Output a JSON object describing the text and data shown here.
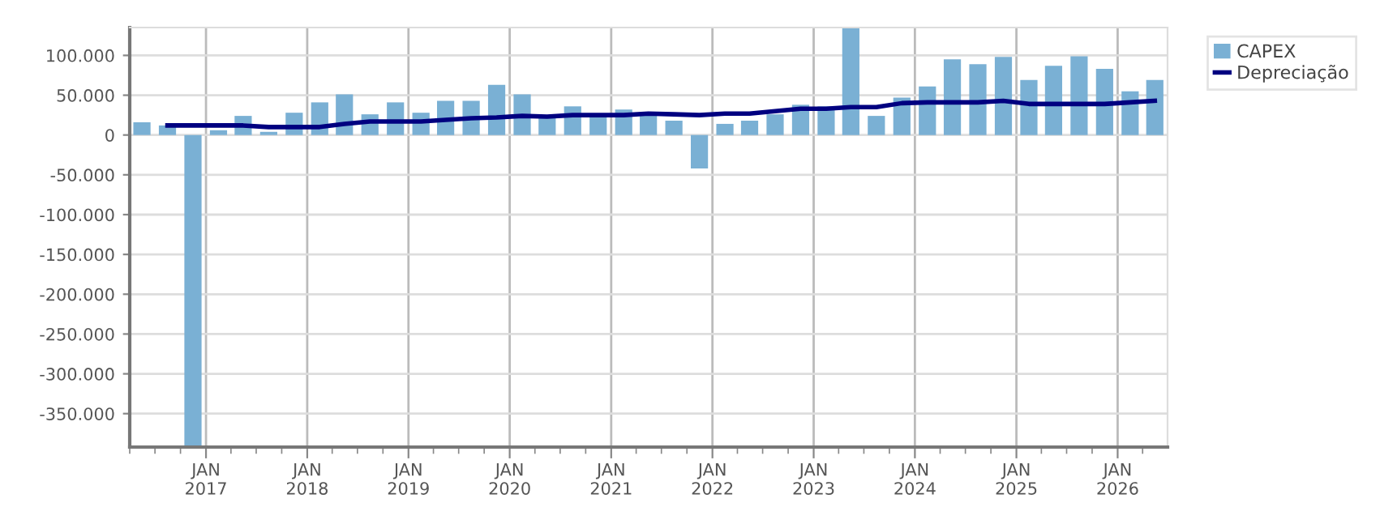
{
  "chart_data": {
    "type": "bar",
    "x": [
      "2016-05-15",
      "2016-08-15",
      "2016-11-15",
      "2017-02-15",
      "2017-05-15",
      "2017-08-15",
      "2017-11-15",
      "2018-02-15",
      "2018-05-15",
      "2018-08-15",
      "2018-11-15",
      "2019-02-15",
      "2019-05-15",
      "2019-08-15",
      "2019-11-15",
      "2020-02-15",
      "2020-05-15",
      "2020-08-15",
      "2020-11-15",
      "2021-02-15",
      "2021-05-15",
      "2021-08-15",
      "2021-11-15",
      "2022-02-15",
      "2022-05-15",
      "2022-08-15",
      "2022-11-15",
      "2023-02-15",
      "2023-05-15",
      "2023-08-15",
      "2023-11-15",
      "2024-02-15",
      "2024-05-15",
      "2024-08-15",
      "2024-11-15",
      "2025-02-15",
      "2025-05-15",
      "2025-08-15",
      "2025-11-15",
      "2026-02-15",
      "2026-05-15"
    ],
    "series": [
      {
        "name": "CAPEX",
        "color": "#7ab0d4",
        "values": [
          16000,
          12000,
          -392000,
          6000,
          24000,
          4000,
          28000,
          41000,
          51000,
          26000,
          41000,
          28000,
          43000,
          43000,
          63000,
          51000,
          22000,
          36000,
          23000,
          32000,
          25000,
          18000,
          -42000,
          14000,
          18000,
          26000,
          38000,
          36000,
          134000,
          24000,
          47000,
          61000,
          95000,
          89000,
          98000,
          69000,
          87000,
          99000,
          83000,
          55000,
          69000
        ]
      },
      {
        "name": "Depreciação",
        "type": "line",
        "color": "#000080",
        "values": [
          null,
          12000,
          12000,
          12000,
          12000,
          10000,
          10000,
          10000,
          14000,
          17000,
          17000,
          17000,
          19000,
          21000,
          22000,
          24000,
          23000,
          25000,
          25000,
          25000,
          27000,
          26000,
          25000,
          27000,
          27000,
          30000,
          33000,
          33000,
          35000,
          35000,
          40000,
          41000,
          41000,
          41000,
          43000,
          39000,
          39000,
          39000,
          39000,
          41000,
          43000
        ]
      }
    ],
    "xlim": [
      "2016-04-01",
      "2026-06-30"
    ],
    "xticks": [
      {
        "value": "2016-04-01",
        "label": null
      },
      {
        "value": "2016-07-01",
        "label": null
      },
      {
        "value": "2016-10-01",
        "label": null
      },
      {
        "value": "2017-01-01",
        "label": "JAN\n2017"
      },
      {
        "value": "2017-04-01",
        "label": null
      },
      {
        "value": "2017-07-01",
        "label": null
      },
      {
        "value": "2017-10-01",
        "label": null
      },
      {
        "value": "2018-01-01",
        "label": "JAN\n2018"
      },
      {
        "value": "2018-04-01",
        "label": null
      },
      {
        "value": "2018-07-01",
        "label": null
      },
      {
        "value": "2018-10-01",
        "label": null
      },
      {
        "value": "2019-01-01",
        "label": "JAN\n2019"
      },
      {
        "value": "2019-04-01",
        "label": null
      },
      {
        "value": "2019-07-01",
        "label": null
      },
      {
        "value": "2019-10-01",
        "label": null
      },
      {
        "value": "2020-01-01",
        "label": "JAN\n2020"
      },
      {
        "value": "2020-04-01",
        "label": null
      },
      {
        "value": "2020-07-01",
        "label": null
      },
      {
        "value": "2020-10-01",
        "label": null
      },
      {
        "value": "2021-01-01",
        "label": "JAN\n2021"
      },
      {
        "value": "2021-04-01",
        "label": null
      },
      {
        "value": "2021-07-01",
        "label": null
      },
      {
        "value": "2021-10-01",
        "label": null
      },
      {
        "value": "2022-01-01",
        "label": "JAN\n2022"
      },
      {
        "value": "2022-04-01",
        "label": null
      },
      {
        "value": "2022-07-01",
        "label": null
      },
      {
        "value": "2022-10-01",
        "label": null
      },
      {
        "value": "2023-01-01",
        "label": "JAN\n2023"
      },
      {
        "value": "2023-04-01",
        "label": null
      },
      {
        "value": "2023-07-01",
        "label": null
      },
      {
        "value": "2023-10-01",
        "label": null
      },
      {
        "value": "2024-01-01",
        "label": "JAN\n2024"
      },
      {
        "value": "2024-04-01",
        "label": null
      },
      {
        "value": "2024-07-01",
        "label": null
      },
      {
        "value": "2024-10-01",
        "label": null
      },
      {
        "value": "2025-01-01",
        "label": "JAN\n2025"
      },
      {
        "value": "2025-04-01",
        "label": null
      },
      {
        "value": "2025-07-01",
        "label": null
      },
      {
        "value": "2025-10-01",
        "label": null
      },
      {
        "value": "2026-01-01",
        "label": "JAN\n2026"
      },
      {
        "value": "2026-04-01",
        "label": null
      }
    ],
    "ylim": [
      -392000,
      135000
    ],
    "yticks": [
      {
        "value": -350000,
        "label": "-350.000"
      },
      {
        "value": -300000,
        "label": "-300.000"
      },
      {
        "value": -250000,
        "label": "-250.000"
      },
      {
        "value": -200000,
        "label": "-200.000"
      },
      {
        "value": -150000,
        "label": "-150.000"
      },
      {
        "value": -100000,
        "label": "-100.000"
      },
      {
        "value": -50000,
        "label": "-50.000"
      },
      {
        "value": 0,
        "label": "0"
      },
      {
        "value": 50000,
        "label": "50.000"
      },
      {
        "value": 100000,
        "label": "100.000"
      }
    ],
    "grid": true,
    "legend": "top right"
  }
}
